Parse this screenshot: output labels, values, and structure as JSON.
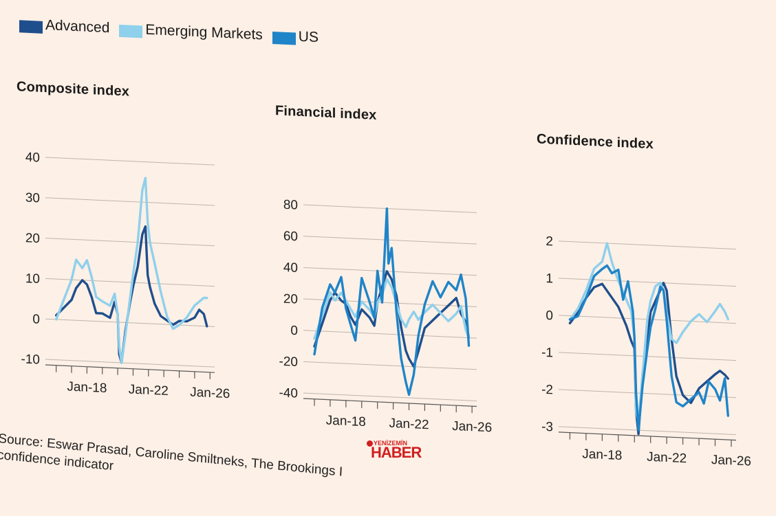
{
  "legend": [
    {
      "name": "Advanced",
      "color": "#1f4e8c"
    },
    {
      "name": "Emerging Markets",
      "color": "#8fd0ec"
    },
    {
      "name": "US",
      "color": "#1f84c8"
    }
  ],
  "source_text": "Source: Eswar Prasad, Caroline Smiltneks, The Brookings I",
  "source_text_2": "confidence indicator",
  "logo": {
    "top": "YENİZEMİN",
    "main": "HABER"
  },
  "chart_data": [
    {
      "type": "line",
      "title": "Composite index",
      "ylim": [
        -10,
        40
      ],
      "yticks": [
        40,
        30,
        20,
        10,
        0,
        -10
      ],
      "xlim": [
        2015.3,
        2026.3
      ],
      "xticks_major": [
        {
          "x": 2018,
          "label": "Jan-18"
        },
        {
          "x": 2022,
          "label": "Jan-22"
        },
        {
          "x": 2026,
          "label": "Jan-26"
        }
      ],
      "grid": true,
      "series": [
        {
          "name": "Advanced",
          "color": "#1f4e8c",
          "x": [
            2016.0,
            2016.5,
            2017.0,
            2017.3,
            2017.7,
            2018.0,
            2018.3,
            2018.6,
            2019.0,
            2019.5,
            2019.8,
            2020.0,
            2020.1,
            2020.25,
            2020.5,
            2020.8,
            2021.0,
            2021.3,
            2021.6,
            2021.8,
            2021.95,
            2022.1,
            2022.4,
            2022.8,
            2023.2,
            2023.6,
            2024.0,
            2024.5,
            2025.0,
            2025.3,
            2025.6,
            2025.8
          ],
          "values": [
            1,
            3,
            5,
            8,
            10,
            9,
            6,
            2,
            2,
            1,
            5,
            2,
            -8,
            -10,
            -2,
            5,
            9,
            14,
            22,
            24,
            12,
            9,
            5,
            2,
            1,
            0,
            1,
            1,
            2,
            4,
            3,
            0
          ]
        },
        {
          "name": "Emerging Markets",
          "color": "#8fd0ec",
          "x": [
            2016.0,
            2016.5,
            2017.0,
            2017.3,
            2017.7,
            2018.0,
            2018.3,
            2018.6,
            2019.0,
            2019.5,
            2019.8,
            2020.0,
            2020.1,
            2020.25,
            2020.5,
            2020.8,
            2021.0,
            2021.3,
            2021.6,
            2021.8,
            2021.95,
            2022.1,
            2022.4,
            2022.8,
            2023.2,
            2023.6,
            2024.0,
            2024.5,
            2025.0,
            2025.3,
            2025.6,
            2025.8
          ],
          "values": [
            0,
            5,
            10,
            15,
            13,
            15,
            11,
            6,
            5,
            4,
            7,
            2,
            -6,
            -10,
            -3,
            6,
            12,
            20,
            33,
            36,
            25,
            20,
            15,
            8,
            2,
            -1,
            0,
            2,
            5,
            6,
            7,
            7
          ]
        },
        {
          "name": "US",
          "color": "#1f84c8",
          "x": [],
          "values": []
        }
      ]
    },
    {
      "type": "line",
      "title": "Financial index",
      "ylim": [
        -40,
        80
      ],
      "yticks": [
        80,
        60,
        40,
        20,
        0,
        -20,
        -40
      ],
      "xlim": [
        2015.3,
        2026.3
      ],
      "xticks_major": [
        {
          "x": 2018,
          "label": "Jan-18"
        },
        {
          "x": 2022,
          "label": "Jan-22"
        },
        {
          "x": 2026,
          "label": "Jan-26"
        }
      ],
      "grid": true,
      "series": [
        {
          "name": "Advanced",
          "color": "#1f4e8c",
          "x": [
            2016.0,
            2016.5,
            2017.0,
            2017.3,
            2017.7,
            2018.0,
            2018.3,
            2018.6,
            2019.0,
            2019.5,
            2019.8,
            2020.0,
            2020.3,
            2020.6,
            2020.9,
            2021.2,
            2021.5,
            2021.8,
            2022.0,
            2022.3,
            2022.6,
            2023.0,
            2023.5,
            2024.0,
            2024.5,
            2025.0,
            2025.3,
            2025.6,
            2025.8
          ],
          "values": [
            -10,
            5,
            20,
            25,
            20,
            18,
            10,
            5,
            15,
            10,
            5,
            20,
            30,
            40,
            35,
            25,
            5,
            -10,
            -15,
            -20,
            -10,
            5,
            10,
            15,
            20,
            25,
            15,
            10,
            0
          ]
        },
        {
          "name": "Emerging Markets",
          "color": "#8fd0ec",
          "x": [
            2016.0,
            2016.5,
            2017.0,
            2017.3,
            2017.7,
            2018.0,
            2018.3,
            2018.6,
            2019.0,
            2019.5,
            2019.8,
            2020.0,
            2020.3,
            2020.6,
            2020.9,
            2021.2,
            2021.5,
            2021.8,
            2022.0,
            2022.3,
            2022.6,
            2023.0,
            2023.5,
            2024.0,
            2024.5,
            2025.0,
            2025.3,
            2025.6,
            2025.8
          ],
          "values": [
            -5,
            10,
            25,
            20,
            25,
            20,
            15,
            10,
            20,
            15,
            10,
            20,
            25,
            35,
            30,
            20,
            10,
            5,
            10,
            15,
            10,
            15,
            20,
            15,
            10,
            15,
            20,
            5,
            0
          ]
        },
        {
          "name": "US",
          "color": "#1f84c8",
          "x": [
            2016.0,
            2016.5,
            2017.0,
            2017.3,
            2017.7,
            2018.0,
            2018.3,
            2018.6,
            2019.0,
            2019.5,
            2019.8,
            2020.0,
            2020.3,
            2020.5,
            2020.6,
            2020.7,
            2020.9,
            2021.2,
            2021.5,
            2021.8,
            2022.0,
            2022.3,
            2022.6,
            2023.0,
            2023.5,
            2024.0,
            2024.5,
            2025.0,
            2025.3,
            2025.6,
            2025.8
          ],
          "values": [
            -15,
            15,
            30,
            25,
            35,
            15,
            5,
            -5,
            35,
            20,
            10,
            40,
            20,
            60,
            80,
            45,
            55,
            15,
            -15,
            -30,
            -38,
            -25,
            0,
            20,
            35,
            25,
            35,
            30,
            40,
            25,
            -5
          ]
        }
      ]
    },
    {
      "type": "line",
      "title": "Confidence index",
      "ylim": [
        -3,
        2
      ],
      "yticks": [
        2,
        1,
        0,
        -1,
        -2,
        -3
      ],
      "xlim": [
        2015.3,
        2026.3
      ],
      "xticks_major": [
        {
          "x": 2018,
          "label": "Jan-18"
        },
        {
          "x": 2022,
          "label": "Jan-22"
        },
        {
          "x": 2026,
          "label": "Jan-26"
        }
      ],
      "grid": true,
      "series": [
        {
          "name": "Advanced",
          "color": "#1f4e8c",
          "x": [
            2016.0,
            2016.5,
            2017.0,
            2017.5,
            2018.0,
            2018.5,
            2019.0,
            2019.5,
            2019.8,
            2020.0,
            2020.1,
            2020.25,
            2020.5,
            2020.8,
            2021.0,
            2021.3,
            2021.6,
            2021.8,
            2022.0,
            2022.3,
            2022.6,
            2023.0,
            2023.5,
            2024.0,
            2024.5,
            2025.0,
            2025.3,
            2025.6,
            2025.8
          ],
          "values": [
            -0.2,
            0.1,
            0.5,
            0.8,
            0.9,
            0.6,
            0.3,
            -0.2,
            -0.6,
            -0.8,
            -2.5,
            -3.1,
            -1.5,
            -0.5,
            0.2,
            0.5,
            0.8,
            1.0,
            0.8,
            -0.5,
            -1.5,
            -2.0,
            -2.2,
            -1.8,
            -1.6,
            -1.4,
            -1.3,
            -1.4,
            -1.5
          ]
        },
        {
          "name": "Emerging Markets",
          "color": "#8fd0ec",
          "x": [
            2016.0,
            2016.5,
            2017.0,
            2017.5,
            2018.0,
            2018.3,
            2018.6,
            2019.0,
            2019.5,
            2019.8,
            2020.0,
            2020.1,
            2020.25,
            2020.5,
            2020.8,
            2021.0,
            2021.3,
            2021.6,
            2021.8,
            2022.0,
            2022.3,
            2022.6,
            2023.0,
            2023.5,
            2024.0,
            2024.5,
            2025.0,
            2025.3,
            2025.6,
            2025.8
          ],
          "values": [
            -0.1,
            0.2,
            0.7,
            1.3,
            1.5,
            2.0,
            1.5,
            1.0,
            0.5,
            0.2,
            -0.5,
            -2.5,
            -2.8,
            -1.5,
            0.0,
            0.5,
            0.9,
            1.0,
            0.8,
            0.2,
            -0.5,
            -0.6,
            -0.3,
            0.0,
            0.2,
            0.0,
            0.3,
            0.5,
            0.3,
            0.1
          ]
        },
        {
          "name": "US",
          "color": "#1f84c8",
          "x": [
            2016.0,
            2016.5,
            2017.0,
            2017.5,
            2018.0,
            2018.3,
            2018.6,
            2019.0,
            2019.3,
            2019.6,
            2019.9,
            2020.0,
            2020.1,
            2020.25,
            2020.5,
            2020.8,
            2021.0,
            2021.3,
            2021.6,
            2021.8,
            2022.0,
            2022.3,
            2022.6,
            2023.0,
            2023.5,
            2024.0,
            2024.3,
            2024.6,
            2025.0,
            2025.3,
            2025.6,
            2025.8
          ],
          "values": [
            -0.1,
            0.0,
            0.5,
            1.1,
            1.3,
            1.4,
            1.2,
            1.3,
            0.5,
            1.0,
            0.2,
            -0.5,
            -2.0,
            -3.0,
            -1.8,
            -0.8,
            -0.2,
            0.3,
            0.9,
            0.8,
            0.0,
            -1.5,
            -2.2,
            -2.3,
            -2.1,
            -1.9,
            -2.2,
            -1.6,
            -1.8,
            -2.1,
            -1.5,
            -2.5
          ]
        }
      ]
    }
  ]
}
